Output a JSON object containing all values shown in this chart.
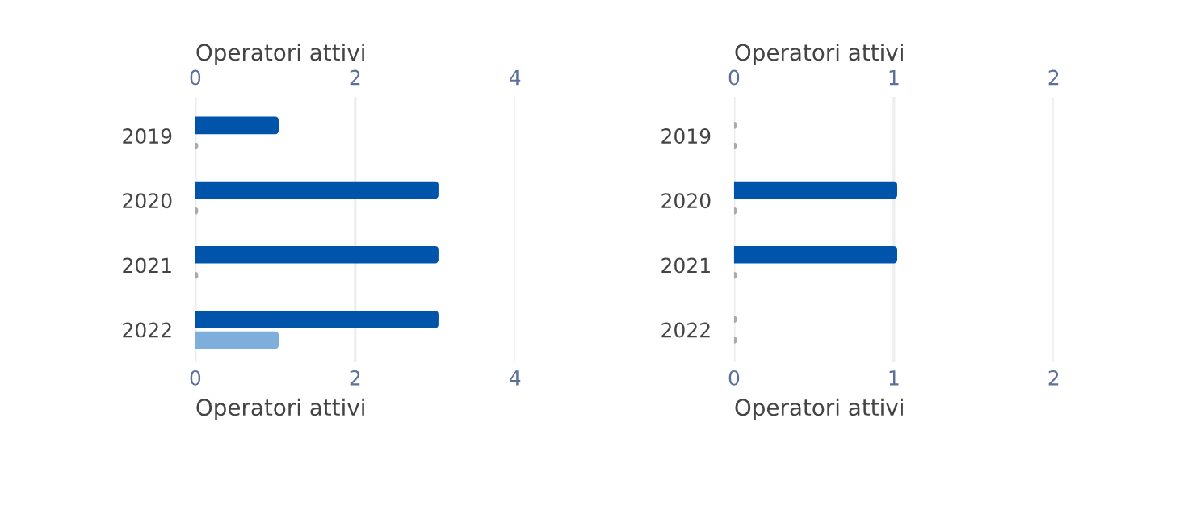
{
  "chart_data": [
    {
      "type": "bar",
      "orientation": "horizontal",
      "xlabel": "Operatori attivi",
      "x2label": "Operatori attivi",
      "categories": [
        "2019",
        "2020",
        "2021",
        "2022"
      ],
      "series": [
        {
          "color": "#0055aa",
          "values": [
            1,
            3,
            3,
            3
          ]
        },
        {
          "color": "#7eaedb",
          "values": [
            0,
            0,
            0,
            1
          ]
        }
      ],
      "xlim": [
        0,
        4
      ],
      "xticks": [
        0,
        2,
        4
      ],
      "x2lim": [
        0,
        4
      ],
      "x2ticks": [
        0,
        2,
        4
      ],
      "grid": "x"
    },
    {
      "type": "bar",
      "orientation": "horizontal",
      "xlabel": "Operatori attivi",
      "x2label": "Operatori attivi",
      "categories": [
        "2019",
        "2020",
        "2021",
        "2022"
      ],
      "series": [
        {
          "color": "#0055aa",
          "values": [
            0,
            1,
            1,
            0
          ]
        },
        {
          "values": [
            0,
            0,
            0,
            0
          ]
        }
      ],
      "xlim": [
        0,
        2
      ],
      "xticks": [
        0,
        1,
        2
      ],
      "x2lim": [
        0,
        2
      ],
      "x2ticks": [
        0,
        1,
        2
      ],
      "grid": "x"
    }
  ]
}
